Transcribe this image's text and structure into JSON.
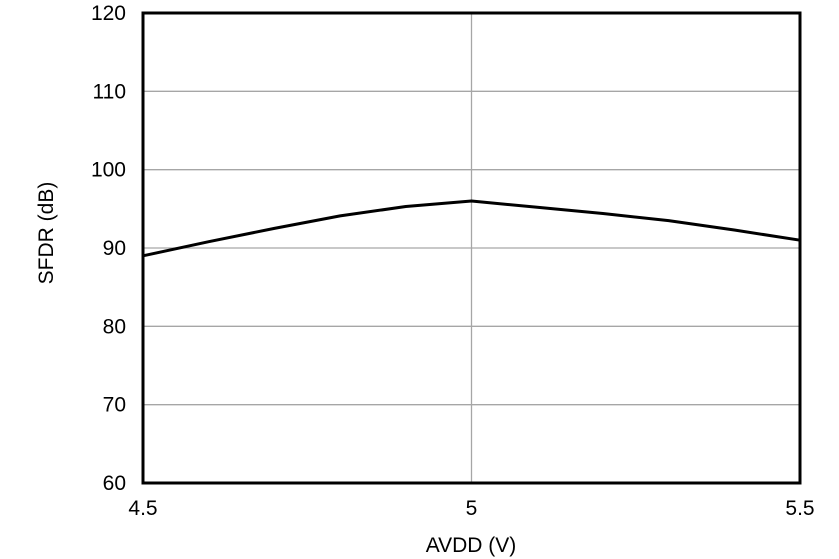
{
  "chart_data": {
    "type": "line",
    "title": "",
    "xlabel": "AVDD (V)",
    "ylabel": "SFDR (dB)",
    "x": [
      4.5,
      4.6,
      4.7,
      4.8,
      4.9,
      5.0,
      5.1,
      5.2,
      5.3,
      5.4,
      5.5
    ],
    "series": [
      {
        "name": "SFDR",
        "values": [
          89.0,
          90.8,
          92.5,
          94.1,
          95.3,
          96.0,
          95.2,
          94.4,
          93.5,
          92.3,
          91.0
        ],
        "color": "#000000"
      }
    ],
    "xlim": [
      4.5,
      5.5
    ],
    "ylim": [
      60,
      120
    ],
    "xticks": [
      4.5,
      5.0,
      5.5
    ],
    "xtick_labels": [
      "4.5",
      "5",
      "5.5"
    ],
    "yticks": [
      60,
      70,
      80,
      90,
      100,
      110,
      120
    ],
    "ytick_labels": [
      "60",
      "70",
      "80",
      "90",
      "100",
      "110",
      "120"
    ],
    "grid": true,
    "legend_position": "none"
  },
  "colors": {
    "background": "#ffffff",
    "plot_border": "#000000",
    "gridline": "#a6a6a6",
    "line": "#000000",
    "text": "#000000"
  }
}
